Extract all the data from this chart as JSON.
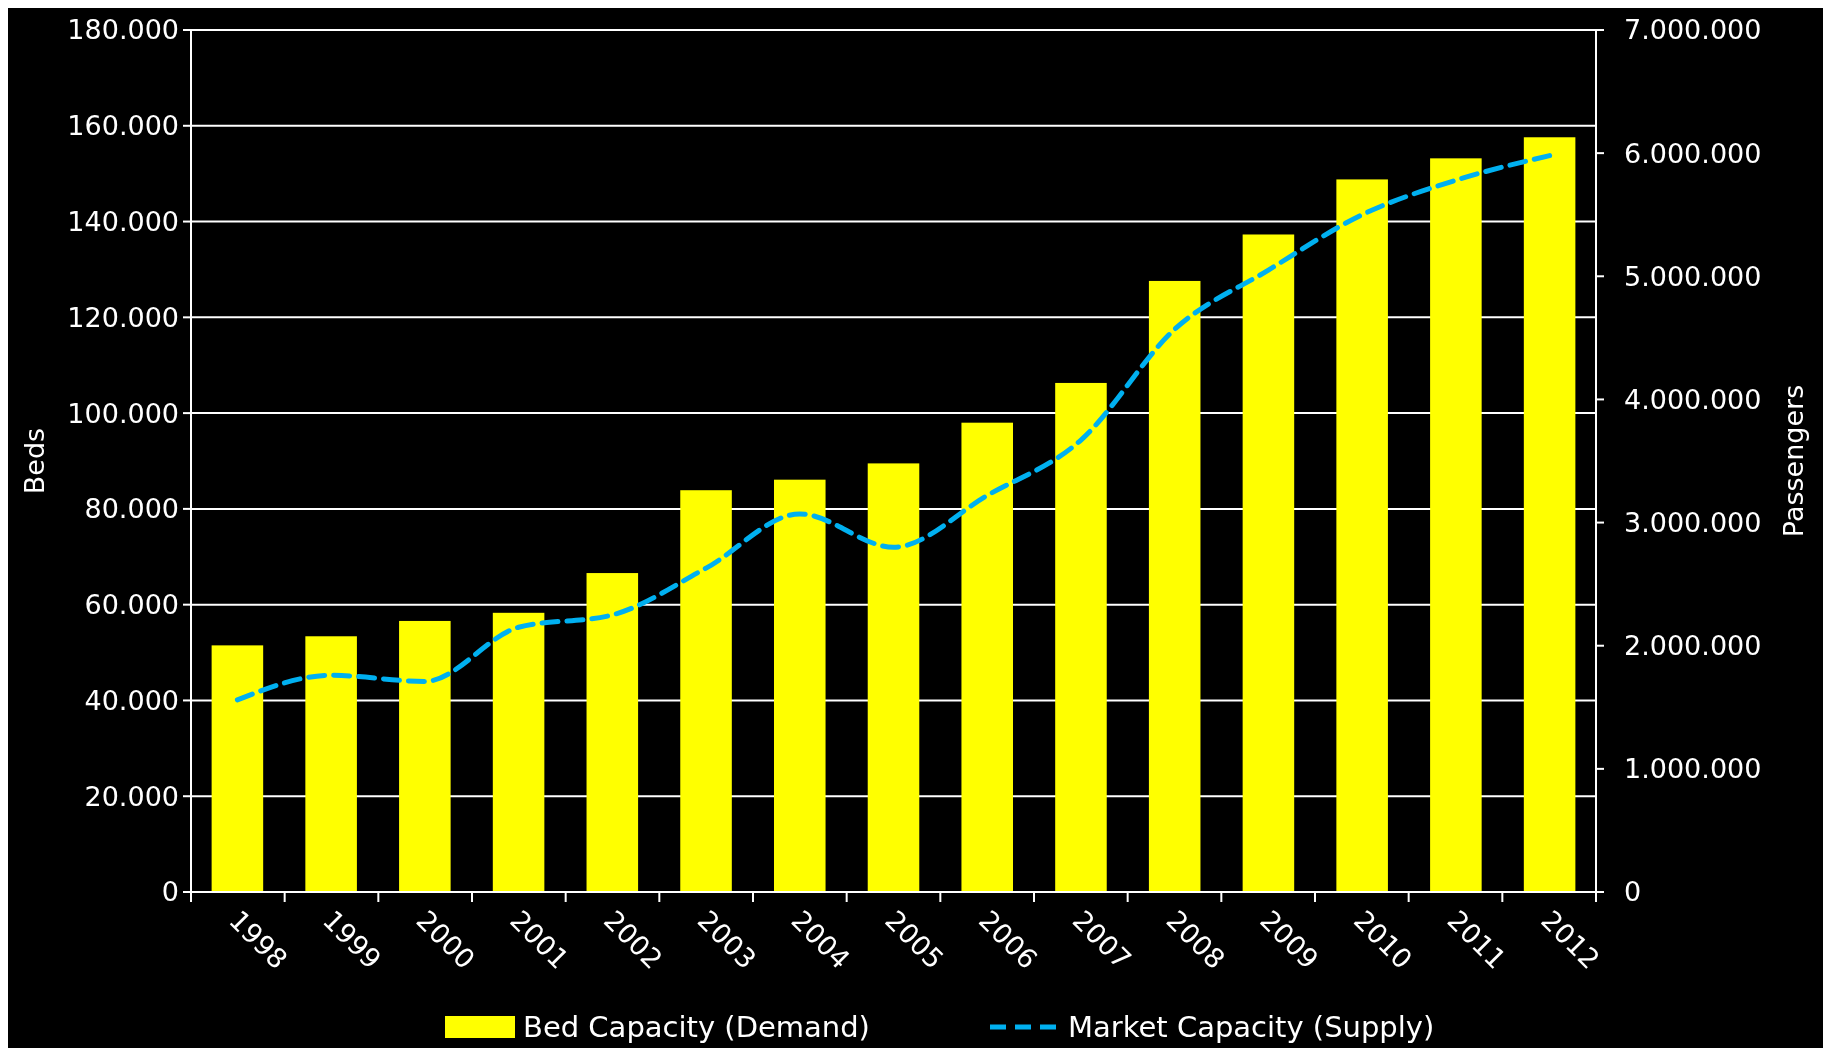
{
  "chart_data": {
    "type": "bar",
    "ylabel": "Beds",
    "y2label": "Passengers",
    "categories": [
      "1998",
      "1999",
      "2000",
      "2001",
      "2002",
      "2003",
      "2004",
      "2005",
      "2006",
      "2007",
      "2008",
      "2009",
      "2010",
      "2011",
      "2012"
    ],
    "series": [
      {
        "name": "Bed Capacity (Demand)",
        "color": "#ffff00",
        "values": [
          51500,
          53400,
          56600,
          58300,
          66600,
          83900,
          86100,
          89500,
          98000,
          106300,
          127600,
          137300,
          148800,
          153200,
          157600
        ]
      },
      {
        "name": "Market Capacity (Supply)",
        "type": "line",
        "axis": "y2",
        "color": "#00b0f0",
        "line_style": "dashed",
        "values": [
          1560000,
          1760000,
          1710000,
          2150000,
          2250000,
          2630000,
          3070000,
          2800000,
          3220000,
          3670000,
          4570000,
          5050000,
          5500000,
          5780000,
          5980000
        ]
      }
    ],
    "ylim": [
      0,
      180000
    ],
    "yticks": [
      {
        "value": 0,
        "label": "0"
      },
      {
        "value": 20000,
        "label": "20.000"
      },
      {
        "value": 40000,
        "label": "40.000"
      },
      {
        "value": 60000,
        "label": "60.000"
      },
      {
        "value": 80000,
        "label": "80.000"
      },
      {
        "value": 100000,
        "label": "100.000"
      },
      {
        "value": 120000,
        "label": "120.000"
      },
      {
        "value": 140000,
        "label": "140.000"
      },
      {
        "value": 160000,
        "label": "160.000"
      },
      {
        "value": 180000,
        "label": "180.000"
      }
    ],
    "y2lim": [
      0,
      7000000
    ],
    "y2ticks": [
      {
        "value": 0,
        "label": "0"
      },
      {
        "value": 1000000,
        "label": "1.000.000"
      },
      {
        "value": 2000000,
        "label": "2.000.000"
      },
      {
        "value": 3000000,
        "label": "3.000.000"
      },
      {
        "value": 4000000,
        "label": "4.000.000"
      },
      {
        "value": 5000000,
        "label": "5.000.000"
      },
      {
        "value": 6000000,
        "label": "6.000.000"
      },
      {
        "value": 7000000,
        "label": "7.000.000"
      }
    ],
    "grid": "y",
    "legend": "bottom",
    "marker": "none"
  }
}
